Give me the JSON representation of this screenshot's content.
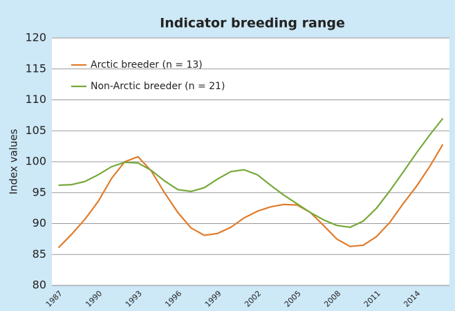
{
  "chart_data": {
    "type": "line",
    "title": "Indicator breeding range",
    "ylabel": "Index values",
    "categories": [
      "1987",
      null,
      null,
      "1990",
      null,
      null,
      "1993",
      null,
      null,
      "1996",
      null,
      null,
      "1999",
      null,
      null,
      "2002",
      null,
      null,
      "2005",
      null,
      null,
      "2008",
      null,
      null,
      "2011",
      null,
      null,
      "2014",
      null,
      null
    ],
    "series": [
      {
        "name": "Arctic breeder (n = 13)",
        "color": "#e07b2a",
        "values": [
          86.1,
          88.3,
          90.7,
          93.6,
          97.3,
          100.0,
          100.8,
          98.5,
          95.0,
          91.8,
          89.3,
          88.1,
          88.4,
          89.4,
          90.9,
          92.0,
          92.7,
          93.1,
          93.0,
          91.8,
          89.7,
          87.5,
          86.3,
          86.5,
          87.9,
          90.2,
          93.2,
          96.0,
          99.2,
          102.8
        ]
      },
      {
        "name": "Non-Arctic breeder (n = 21)",
        "color": "#77a83a",
        "values": [
          96.2,
          96.3,
          96.8,
          97.9,
          99.2,
          99.9,
          99.8,
          98.6,
          96.9,
          95.5,
          95.2,
          95.8,
          97.2,
          98.4,
          98.7,
          97.9,
          96.2,
          94.6,
          93.2,
          91.8,
          90.6,
          89.7,
          89.4,
          90.4,
          92.5,
          95.3,
          98.3,
          101.4,
          104.3,
          107.0
        ]
      }
    ],
    "ylim": [
      80,
      120
    ],
    "yticks": [
      80,
      85,
      90,
      95,
      100,
      105,
      110,
      115,
      120
    ],
    "grid": true,
    "legend": "upper left"
  }
}
